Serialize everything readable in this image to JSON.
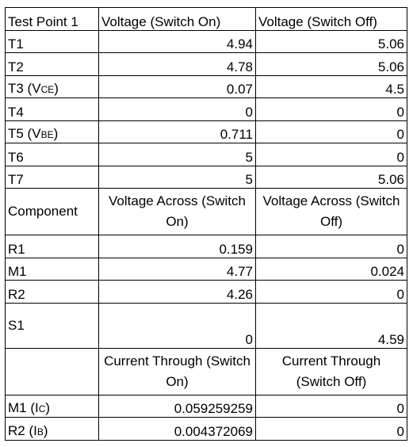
{
  "table": {
    "header": {
      "test_point": "Test Point 1",
      "v_on": "Voltage (Switch On)",
      "v_off": "Voltage (Switch Off)"
    },
    "test_points": [
      {
        "label": "T1",
        "sub": "",
        "on": "4.94",
        "off": "5.06"
      },
      {
        "label": "T2",
        "sub": "",
        "on": "4.78",
        "off": "5.06"
      },
      {
        "label": "T3 (V",
        "sub": "CE",
        "suffix": ")",
        "on": "0.07",
        "off": "4.5"
      },
      {
        "label": "T4",
        "sub": "",
        "on": "0",
        "off": "0"
      },
      {
        "label": "T5 (V",
        "sub": "BE",
        "suffix": ")",
        "on": "0.711",
        "off": "0"
      },
      {
        "label": "T6",
        "sub": "",
        "on": "5",
        "off": "0"
      },
      {
        "label": "T7",
        "sub": "",
        "on": "5",
        "off": "5.06"
      }
    ],
    "component_header": {
      "label": "Component",
      "across_on": "Voltage Across (Switch On)",
      "across_off": "Voltage Across (Switch Off)"
    },
    "components": [
      {
        "label": "R1",
        "on": "0.159",
        "off": "0"
      },
      {
        "label": "M1",
        "on": "4.77",
        "off": "0.024"
      },
      {
        "label": "R2",
        "on": "4.26",
        "off": "0"
      },
      {
        "label": "S1",
        "on": "0",
        "off": "4.59"
      }
    ],
    "current_header": {
      "label": "",
      "through_on": "Current Through (Switch On)",
      "through_off": "Current Through (Switch Off)"
    },
    "currents": [
      {
        "label": "M1 (I",
        "sub": "C",
        "suffix": ")",
        "on": "0.059259259",
        "off": "0"
      },
      {
        "label": "R2 (I",
        "sub": "B",
        "suffix": ")",
        "on": "0.004372069",
        "off": "0"
      }
    ]
  }
}
